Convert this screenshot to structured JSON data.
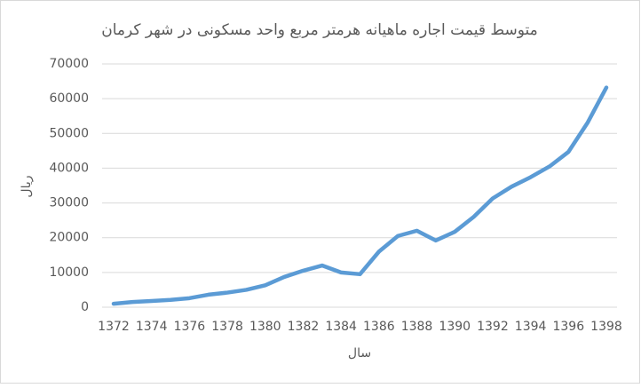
{
  "chart_data": {
    "type": "line",
    "title": "متوسط قیمت اجاره ماهیانه هرمتر مربع واحد مسکونی در شهر کرمان",
    "x_label": "سال",
    "y_label": "ریال",
    "x": [
      1372,
      1373,
      1374,
      1375,
      1376,
      1377,
      1378,
      1379,
      1380,
      1381,
      1382,
      1383,
      1384,
      1385,
      1386,
      1387,
      1388,
      1389,
      1390,
      1391,
      1392,
      1393,
      1394,
      1395,
      1396,
      1397,
      1398
    ],
    "series": [
      {
        "color": "#5b9bd5",
        "values": [
          1000,
          1500,
          1800,
          2100,
          2600,
          3600,
          4200,
          5000,
          6300,
          8700,
          10500,
          12000,
          10000,
          9500,
          16000,
          20500,
          22000,
          19200,
          21700,
          26000,
          31300,
          34700,
          37400,
          40500,
          44700,
          53000,
          63200
        ]
      }
    ],
    "xlim": [
      1372,
      1398
    ],
    "xticks": [
      1372,
      1374,
      1376,
      1378,
      1380,
      1382,
      1384,
      1386,
      1388,
      1390,
      1392,
      1394,
      1396,
      1398
    ],
    "ylim": [
      0,
      70000
    ],
    "yticks": [
      0,
      10000,
      20000,
      30000,
      40000,
      50000,
      60000,
      70000
    ],
    "grid": true
  }
}
